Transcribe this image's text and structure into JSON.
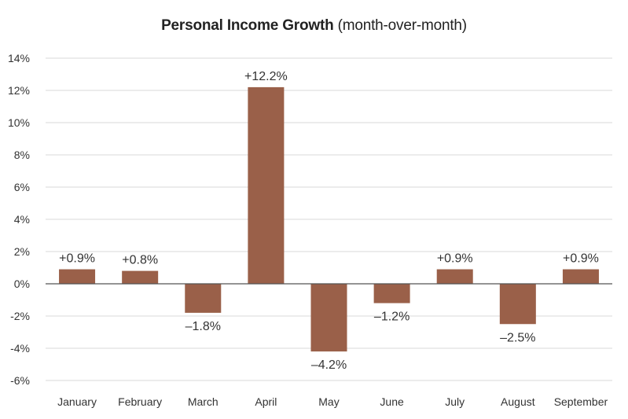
{
  "chart_data": {
    "type": "bar",
    "title": "Personal Income Growth",
    "subtitle": "(month-over-month)",
    "categories": [
      "January",
      "February",
      "March",
      "April",
      "May",
      "June",
      "July",
      "August",
      "September"
    ],
    "values": [
      0.9,
      0.8,
      -1.8,
      12.2,
      -4.2,
      -1.2,
      0.9,
      -2.5,
      0.9
    ],
    "data_labels": [
      "+0.9%",
      "+0.8%",
      "–1.8%",
      "+12.2%",
      "–4.2%",
      "–1.2%",
      "+0.9%",
      "–2.5%",
      "+0.9%"
    ],
    "yticks": [
      -6,
      -4,
      -2,
      0,
      2,
      4,
      6,
      8,
      10,
      12,
      14
    ],
    "ytick_labels": [
      "-6%",
      "-4%",
      "-2%",
      "0%",
      "2%",
      "4%",
      "6%",
      "8%",
      "10%",
      "12%",
      "14%"
    ],
    "ylim": [
      -6,
      14
    ],
    "grid": true,
    "bar_color": "#9a6049",
    "xlabel": "",
    "ylabel": ""
  }
}
